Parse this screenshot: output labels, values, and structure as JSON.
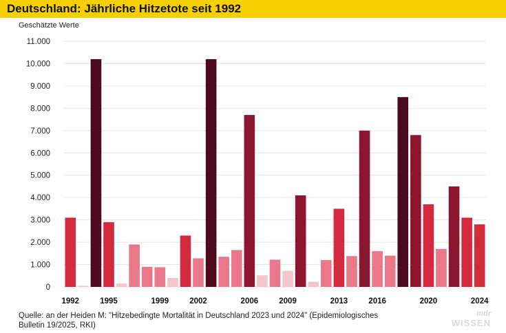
{
  "chart_data": {
    "type": "bar",
    "title": "Deutschland: Jährliche Hitzetote seit 1992",
    "subtitle": "Geschätzte Werte",
    "xlabel": "",
    "ylabel": "",
    "ylim": [
      0,
      11000
    ],
    "yticks": [
      0,
      1000,
      2000,
      3000,
      4000,
      5000,
      6000,
      7000,
      8000,
      9000,
      10000,
      11000
    ],
    "ytick_labels": [
      "0",
      "1.000",
      "2.000",
      "3.000",
      "4.000",
      "5.000",
      "6.000",
      "7.000",
      "8.000",
      "9.000",
      "10.000",
      "11.000"
    ],
    "grid": true,
    "categories": [
      "1992",
      "1993",
      "1994",
      "1995",
      "1996",
      "1997",
      "1998",
      "1999",
      "2000",
      "2001",
      "2002",
      "2003",
      "2004",
      "2005",
      "2006",
      "2007",
      "2008",
      "2009",
      "2010",
      "2011",
      "2012",
      "2013",
      "2014",
      "2015",
      "2016",
      "2017",
      "2018",
      "2019",
      "2020",
      "2021",
      "2022",
      "2023",
      "2024"
    ],
    "values": [
      3100,
      50,
      10200,
      2900,
      150,
      1900,
      900,
      880,
      400,
      2300,
      1280,
      10200,
      1350,
      1650,
      7700,
      520,
      1220,
      720,
      4100,
      230,
      1200,
      3500,
      1380,
      7000,
      1600,
      1400,
      8500,
      6800,
      3700,
      1700,
      4500,
      3100,
      2800
    ],
    "tick_labels": [
      {
        "year": "1992",
        "label": "1992"
      },
      {
        "year": "1995",
        "label": "1995"
      },
      {
        "year": "1999",
        "label": "1999"
      },
      {
        "year": "2002",
        "label": "2002"
      },
      {
        "year": "2006",
        "label": "2006"
      },
      {
        "year": "2009",
        "label": "2009"
      },
      {
        "year": "2013",
        "label": "2013"
      },
      {
        "year": "2016",
        "label": "2016"
      },
      {
        "year": "2020",
        "label": "2020"
      },
      {
        "year": "2024",
        "label": "2024"
      }
    ],
    "color_scale": [
      "#f2c6cc",
      "#e8788a",
      "#d42a3e",
      "#8c1530",
      "#4d0a1d"
    ]
  },
  "source": {
    "line1": "Quelle: an der Heiden M: \"Hitzebedingte Mortalität in Deutschland 2023 und 2024\" (Epidemiologisches",
    "line2": "Bulletin 19/2025, RKI)"
  },
  "brand": {
    "mdr": "mdr",
    "wissen": "WISSEN"
  }
}
